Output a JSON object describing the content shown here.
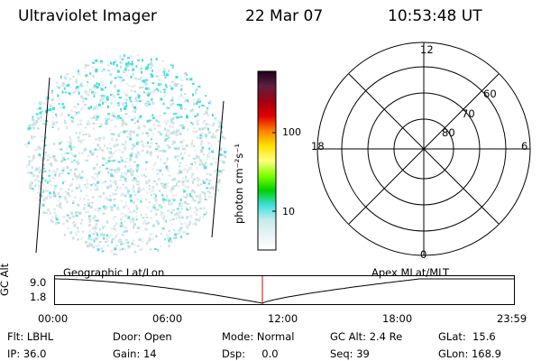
{
  "header": {
    "instrument": "Ultraviolet Imager",
    "date": "22 Mar 07",
    "time": "10:53:48 UT"
  },
  "colorbar": {
    "unit_label": "photon cm⁻²s⁻¹",
    "ticks": [
      "100",
      "10"
    ],
    "stops": [
      "#ffffff",
      "#e8f4f4",
      "#c8ecec",
      "#40e0e0",
      "#00d000",
      "#80ff00",
      "#ffff80",
      "#ffe000",
      "#ff8000",
      "#e00000",
      "#a00010",
      "#602040",
      "#200020"
    ]
  },
  "polar_plot": {
    "mlt_labels": {
      "top": "12",
      "bottom": "0",
      "left": "18",
      "right": "6"
    },
    "lat_labels": [
      "60",
      "70",
      "80"
    ]
  },
  "timeline": {
    "ylabel": "GC Alt",
    "ytick_top": "9.0",
    "ytick_bottom": "1.8",
    "left_label": "Geographic Lat/Lon",
    "right_label": "Apex MLat/MLT",
    "xticks": [
      "00:00",
      "06:00",
      "12:00",
      "18:00",
      "23:59"
    ],
    "marker_color": "#e00000"
  },
  "footer": {
    "flt": "Flt: LBHL",
    "ip": "IP: 36.0",
    "door": "Door: Open",
    "gain": "Gain: 14",
    "mode": "Mode: Normal",
    "dsp": "Dsp:     0.0",
    "gcalt": "GC Alt: 2.4 Re",
    "seq": "Seq: 39",
    "glat": "GLat:  15.6",
    "glon": "GLon: 168.9"
  }
}
